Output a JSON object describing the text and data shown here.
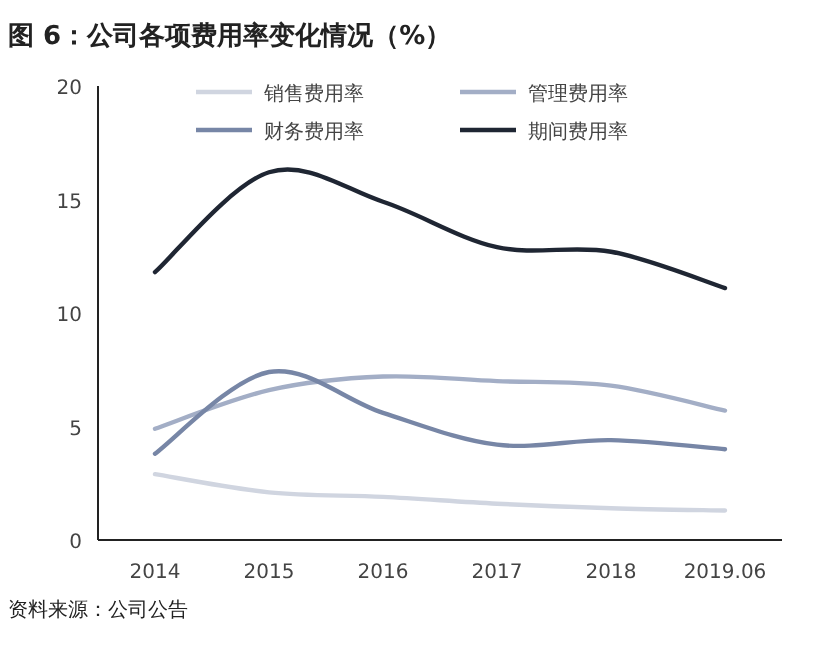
{
  "chart_data": {
    "type": "line",
    "title": "图 6：公司各项费用率变化情况（%）",
    "categories": [
      "2014",
      "2015",
      "2016",
      "2017",
      "2018",
      "2019.06"
    ],
    "series": [
      {
        "name": "销售费用率",
        "color": "#d0d5e0",
        "values": [
          2.9,
          2.1,
          1.9,
          1.6,
          1.4,
          1.3
        ]
      },
      {
        "name": "管理费用率",
        "color": "#a3aec6",
        "values": [
          4.9,
          6.6,
          7.2,
          7.0,
          6.8,
          5.7
        ]
      },
      {
        "name": "财务费用率",
        "color": "#7786a6",
        "values": [
          3.8,
          7.4,
          5.6,
          4.2,
          4.4,
          4.0
        ]
      },
      {
        "name": "期间费用率",
        "color": "#1f2633",
        "values": [
          11.8,
          16.2,
          14.9,
          12.9,
          12.7,
          11.1
        ]
      }
    ],
    "ylim": [
      0,
      20
    ],
    "yticks": [
      0,
      5,
      10,
      15,
      20
    ],
    "grid": false,
    "legend": "top",
    "marker": "none",
    "line_style": "solid",
    "annotations": [
      "资料来源：公司公告"
    ]
  }
}
